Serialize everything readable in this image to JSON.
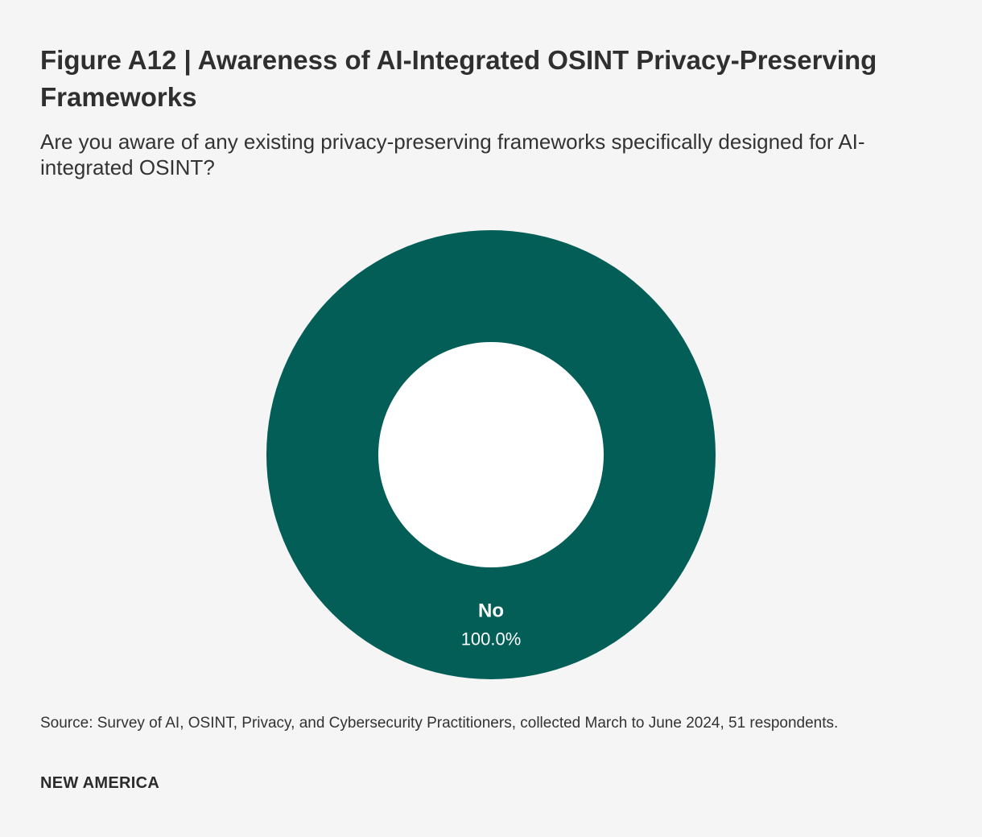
{
  "header": {
    "title": "Figure A12 | Awareness of AI-Integrated OSINT Privacy-Preserving Frameworks",
    "subtitle": "Are you aware of any existing privacy-preserving frameworks specifically designed for AI-integrated OSINT?"
  },
  "chart_data": {
    "type": "pie",
    "variant": "donut",
    "slices": [
      {
        "label": "No",
        "value": 100.0,
        "value_label": "100.0%",
        "color": "#025e56"
      }
    ],
    "hole_color": "#ffffff"
  },
  "footer": {
    "source": "Source: Survey of AI, OSINT, Privacy, and Cybersecurity Practitioners, collected March to June 2024, 51 respondents.",
    "brand": "NEW AMERICA"
  }
}
